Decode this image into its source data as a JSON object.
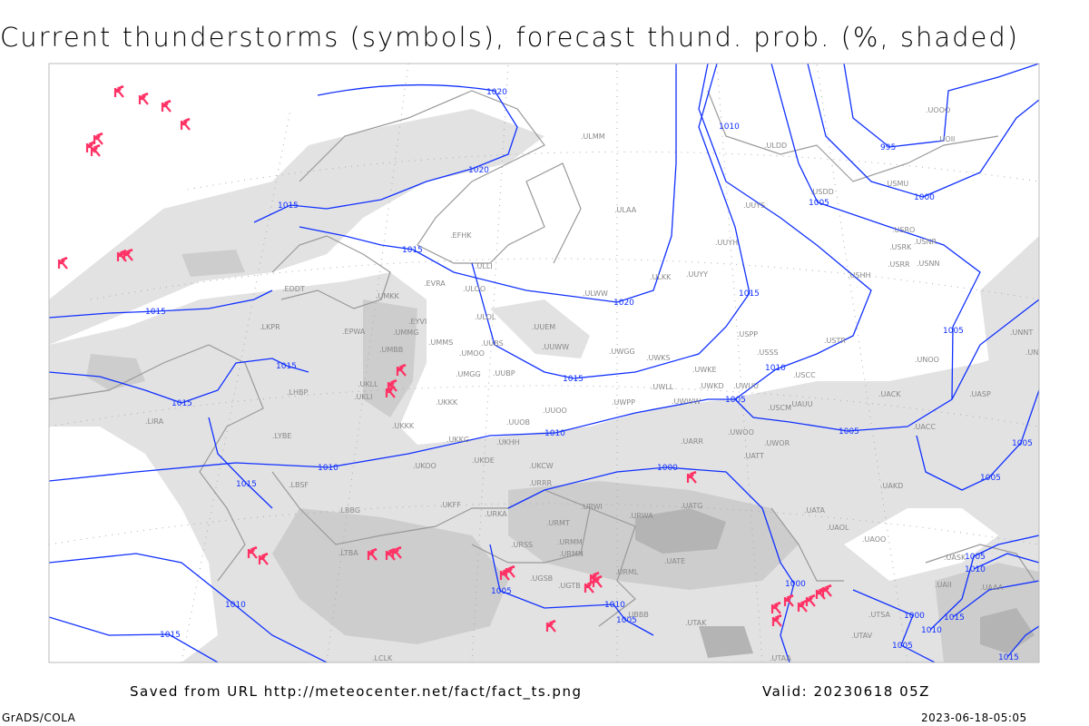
{
  "title": "Current thunderstorms (symbols), forecast thund. prob. (%, shaded)",
  "footer": {
    "saved_from": "Saved from URL http://meteocenter.net/fact/fact_ts.png",
    "valid": "Valid: 20230618 05Z",
    "software": "GrADS/COLA",
    "timestamp": "2023-06-18-05:05"
  },
  "colors": {
    "isobar": "#1030ff",
    "thunderstorm_symbol": "#ff3366",
    "probability_shade_low": "#e2e2e2",
    "probability_shade_mid": "#cdcdcd",
    "probability_shade_high": "#b4b4b4",
    "coastline": "#999999",
    "station_label": "#888888"
  },
  "symbols": {
    "thunderstorm": "thunderstorm-icon"
  },
  "isobar_labels": [
    "1020",
    "1020",
    "1015",
    "1015",
    "1015",
    "1015",
    "1015",
    "1015",
    "1010",
    "1010",
    "1015",
    "1020",
    "1010",
    "1015",
    "1010",
    "1005",
    "1005",
    "995",
    "1000",
    "1005",
    "1005",
    "1005",
    "1005",
    "1000",
    "1000",
    "1005",
    "1010",
    "1005",
    "1010",
    "1015",
    "1005",
    "1010",
    "1015",
    "1000",
    "1005",
    "1010",
    "1015"
  ],
  "stations": [
    "ULMM",
    "ULOO",
    "ULOL",
    "UUEM",
    "UUWW",
    "UUBS",
    "UMMS",
    "UMOO",
    "UMMG",
    "UMBB",
    "UMGG",
    "UUBP",
    "UKLL",
    "UKLI",
    "UKKK",
    "UUOO",
    "UUOB",
    "UWPP",
    "UWGG",
    "ULLI",
    "EVRA",
    "UMKK",
    "EYVI",
    "EPWA",
    "EDDT",
    "EFHK",
    "ULAA",
    "UUYS",
    "UUYH",
    "UUYY",
    "ULKK",
    "ULWW",
    "USSS",
    "USCC",
    "USPP",
    "USTR",
    "USNN",
    "USRR",
    "USRK",
    "USNR",
    "USRO",
    "USHH",
    "USMU",
    "USDD",
    "UOOO",
    "UOII",
    "ULDD",
    "UWKE",
    "UWKS",
    "UWKD",
    "UWLL",
    "UWWW",
    "UWUU",
    "USCM",
    "UAUU",
    "UACC",
    "UASP",
    "UNBB",
    "UNNT",
    "UNOO",
    "UATT",
    "UARR",
    "UWOO",
    "UWOR",
    "UATG",
    "UATA",
    "UAOL",
    "UAOO",
    "UAKD",
    "URWI",
    "URWA",
    "URMT",
    "URMM",
    "URMN",
    "URRR",
    "UKCW",
    "UKOO",
    "UKDE",
    "UKKG",
    "UKHH",
    "UKFF",
    "URKA",
    "UKKK",
    "LBSF",
    "LYBE",
    "LBBG",
    "LIRA",
    "LHBP",
    "LKPR",
    "UBBB",
    "UTAK",
    "UGTB",
    "UGSB",
    "URSS",
    "URML",
    "UATE",
    "LTBA",
    "UTAV",
    "UTSA",
    "UTAA",
    "LCLK",
    "UACK",
    "UASK",
    "UAII",
    "UAAA"
  ]
}
